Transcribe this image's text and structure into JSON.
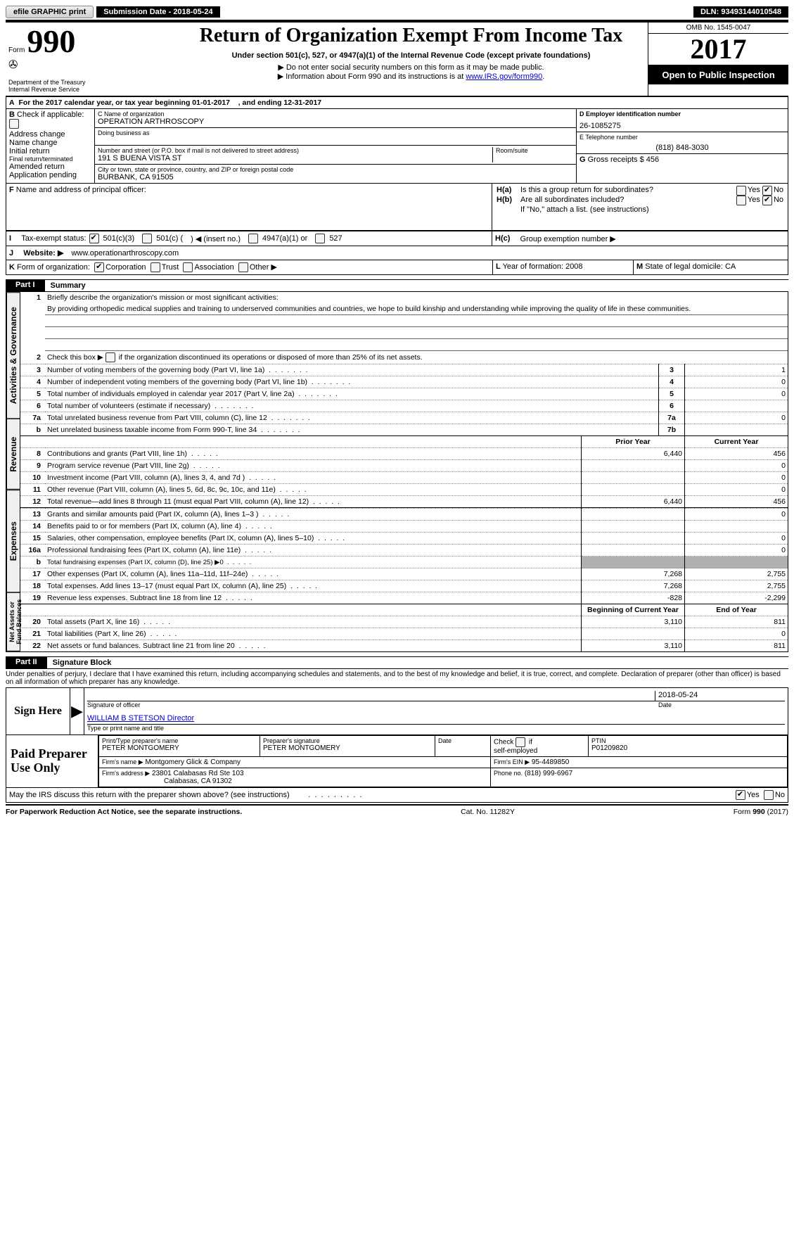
{
  "topbar": {
    "efile": "efile GRAPHIC print",
    "submission_label": "Submission Date - 2018-05-24",
    "dln_label": "DLN: 93493144010548"
  },
  "header": {
    "form_prefix": "Form",
    "form_number": "990",
    "dept": "Department of the Treasury",
    "irs": "Internal Revenue Service",
    "title": "Return of Organization Exempt From Income Tax",
    "sub1": "Under section 501(c), 527, or 4947(a)(1) of the Internal Revenue Code (except private foundations)",
    "sub2": "▶ Do not enter social security numbers on this form as it may be made public.",
    "sub3_pre": "▶ Information about Form 990 and its instructions is at ",
    "sub3_link": "www.IRS.gov/form990",
    "omb": "OMB No. 1545-0047",
    "year": "2017",
    "open": "Open to Public Inspection"
  },
  "A": {
    "line": "For the 2017 calendar year, or tax year beginning 01-01-2017",
    "mid": ", and ending 12-31-2017"
  },
  "B": {
    "title": "Check if applicable:",
    "items": [
      "Address change",
      "Name change",
      "Initial return",
      "Final return/terminated",
      "Amended return",
      "Application pending"
    ]
  },
  "C": {
    "name_label": "C Name of organization",
    "name": "OPERATION ARTHROSCOPY",
    "dba": "Doing business as",
    "street_label": "Number and street (or P.O. box if mail is not delivered to street address)",
    "street": "191 S BUENA VISTA ST",
    "room": "Room/suite",
    "city_label": "City or town, state or province, country, and ZIP or foreign postal code",
    "city": "BURBANK, CA  91505"
  },
  "D": {
    "label": "D Employer identification number",
    "value": "26-1085275"
  },
  "E": {
    "label": "E Telephone number",
    "value": "(818) 848-3030"
  },
  "G": {
    "label": "G",
    "text": "Gross receipts $ 456"
  },
  "F": {
    "label": "F",
    "text": "Name and address of principal officer:"
  },
  "H": {
    "a": "Is this a group return for subordinates?",
    "b": "Are all subordinates included?",
    "b_note": "If \"No,\" attach a list. (see instructions)",
    "c": "Group exemption number ▶",
    "yes": "Yes",
    "no": "No"
  },
  "I": {
    "label": "Tax-exempt status:",
    "o1": "501(c)(3)",
    "o2a": "501(c) (",
    "o2b": ") ◀ (insert no.)",
    "o3": "4947(a)(1) or",
    "o4": "527"
  },
  "J": {
    "label": "Website: ▶",
    "value": "www.operationarthroscopy.com"
  },
  "K": {
    "label": "Form of organization:",
    "c": "Corporation",
    "t": "Trust",
    "a": "Association",
    "o": "Other ▶"
  },
  "L": {
    "label": "L",
    "text": "Year of formation: 2008"
  },
  "M": {
    "label": "M",
    "text": "State of legal domicile: CA"
  },
  "part1": {
    "tag": "Part I",
    "title": "Summary"
  },
  "summary": {
    "l1": "Briefly describe the organization's mission or most significant activities:",
    "l1_text": "By providing orthopedic medical supplies and training to underserved communities and countries, we hope to build kinship and understanding while improving the quality of life in these communities.",
    "l2": "Check this box ▶        if the organization discontinued its operations or disposed of more than 25% of its net assets.",
    "rows_gov": [
      {
        "n": "3",
        "t": "Number of voting members of the governing body (Part VI, line 1a)",
        "ln": "3",
        "py": "",
        "cy": "1"
      },
      {
        "n": "4",
        "t": "Number of independent voting members of the governing body (Part VI, line 1b)",
        "ln": "4",
        "py": "",
        "cy": "0"
      },
      {
        "n": "5",
        "t": "Total number of individuals employed in calendar year 2017 (Part V, line 2a)",
        "ln": "5",
        "py": "",
        "cy": "0"
      },
      {
        "n": "6",
        "t": "Total number of volunteers (estimate if necessary)",
        "ln": "6",
        "py": "",
        "cy": ""
      },
      {
        "n": "7a",
        "t": "Total unrelated business revenue from Part VIII, column (C), line 12",
        "ln": "7a",
        "py": "",
        "cy": "0"
      },
      {
        "n": "b",
        "t": "Net unrelated business taxable income from Form 990-T, line 34",
        "ln": "7b",
        "py": "",
        "cy": ""
      }
    ],
    "col_py": "Prior Year",
    "col_cy": "Current Year",
    "rows_rev": [
      {
        "n": "8",
        "t": "Contributions and grants (Part VIII, line 1h)",
        "py": "6,440",
        "cy": "456"
      },
      {
        "n": "9",
        "t": "Program service revenue (Part VIII, line 2g)",
        "py": "",
        "cy": "0"
      },
      {
        "n": "10",
        "t": "Investment income (Part VIII, column (A), lines 3, 4, and 7d )",
        "py": "",
        "cy": "0"
      },
      {
        "n": "11",
        "t": "Other revenue (Part VIII, column (A), lines 5, 6d, 8c, 9c, 10c, and 11e)",
        "py": "",
        "cy": "0"
      },
      {
        "n": "12",
        "t": "Total revenue—add lines 8 through 11 (must equal Part VIII, column (A), line 12)",
        "py": "6,440",
        "cy": "456"
      }
    ],
    "rows_exp": [
      {
        "n": "13",
        "t": "Grants and similar amounts paid (Part IX, column (A), lines 1–3 )",
        "py": "",
        "cy": "0"
      },
      {
        "n": "14",
        "t": "Benefits paid to or for members (Part IX, column (A), line 4)",
        "py": "",
        "cy": ""
      },
      {
        "n": "15",
        "t": "Salaries, other compensation, employee benefits (Part IX, column (A), lines 5–10)",
        "py": "",
        "cy": "0"
      },
      {
        "n": "16a",
        "t": "Professional fundraising fees (Part IX, column (A), line 11e)",
        "py": "",
        "cy": "0"
      },
      {
        "n": "b",
        "t": "Total fundraising expenses (Part IX, column (D), line 25) ▶0",
        "py": "GREY",
        "cy": "GREY"
      },
      {
        "n": "17",
        "t": "Other expenses (Part IX, column (A), lines 11a–11d, 11f–24e)",
        "py": "7,268",
        "cy": "2,755"
      },
      {
        "n": "18",
        "t": "Total expenses. Add lines 13–17 (must equal Part IX, column (A), line 25)",
        "py": "7,268",
        "cy": "2,755"
      },
      {
        "n": "19",
        "t": "Revenue less expenses. Subtract line 18 from line 12",
        "py": "-828",
        "cy": "-2,299"
      }
    ],
    "col_boy": "Beginning of Current Year",
    "col_eoy": "End of Year",
    "rows_net": [
      {
        "n": "20",
        "t": "Total assets (Part X, line 16)",
        "py": "3,110",
        "cy": "811"
      },
      {
        "n": "21",
        "t": "Total liabilities (Part X, line 26)",
        "py": "",
        "cy": "0"
      },
      {
        "n": "22",
        "t": "Net assets or fund balances. Subtract line 21 from line 20",
        "py": "3,110",
        "cy": "811"
      }
    ],
    "tabs": {
      "gov": "Activities & Governance",
      "rev": "Revenue",
      "exp": "Expenses",
      "net": "Net Assets or Fund Balances"
    }
  },
  "part2": {
    "tag": "Part II",
    "title": "Signature Block"
  },
  "sig": {
    "jurat": "Under penalties of perjury, I declare that I have examined this return, including accompanying schedules and statements, and to the best of my knowledge and belief, it is true, correct, and complete. Declaration of preparer (other than officer) is based on all information of which preparer has any knowledge.",
    "sign_here": "Sign Here",
    "sig_officer": "Signature of officer",
    "date": "Date",
    "date_val": "2018-05-24",
    "name": "WILLIAM B STETSON  Director",
    "name_label": "Type or print name and title"
  },
  "prep": {
    "label": "Paid Preparer Use Only",
    "pt_name_label": "Print/Type preparer's name",
    "pt_name": "PETER MONTGOMERY",
    "pt_sig_label": "Preparer's signature",
    "pt_sig": "PETER MONTGOMERY",
    "pt_date": "Date",
    "check": "Check         if self-employed",
    "ptin_label": "PTIN",
    "ptin": "P01209820",
    "firm_name_label": "Firm's name      ▶",
    "firm_name": "Montgomery Glick & Company",
    "firm_addr_label": "Firm's address ▶",
    "firm_addr1": "23801 Calabasas Rd Ste 103",
    "firm_addr2": "Calabasas, CA  91302",
    "ein_label": "Firm's EIN ▶",
    "ein": "95-4489850",
    "phone_label": "Phone no.",
    "phone": "(818) 999-6967"
  },
  "discuss": {
    "text": "May the IRS discuss this return with the preparer shown above? (see instructions)",
    "yes": "Yes",
    "no": "No"
  },
  "footer": {
    "left": "For Paperwork Reduction Act Notice, see the separate instructions.",
    "mid": "Cat. No. 11282Y",
    "right": "Form 990 (2017)"
  }
}
